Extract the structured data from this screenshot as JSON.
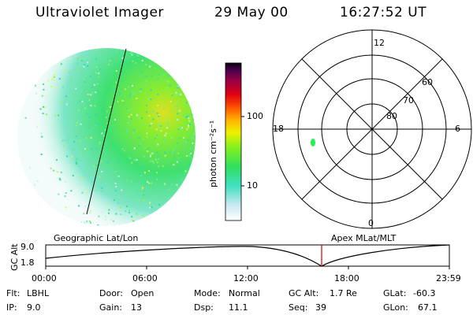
{
  "header": {
    "instrument": "Ultraviolet Imager",
    "date": "29 May 00",
    "time": "16:27:52 UT"
  },
  "colorbar": {
    "unit_label": "photon cm⁻²s⁻¹",
    "ticks": [
      "100",
      "10"
    ]
  },
  "polar_plot": {
    "mlt_labels": {
      "top": "12",
      "right": "6",
      "bottom": "0",
      "left": "18"
    },
    "lat_labels": [
      "60",
      "70",
      "80"
    ]
  },
  "timeline": {
    "left_title": "Geographic Lat/Lon",
    "right_title": "Apex MLat/MLT",
    "y_axis_label": "GC Alt",
    "y_ticks": [
      "9.0",
      "1.8"
    ],
    "x_ticks": [
      "00:00",
      "06:00",
      "12:00",
      "18:00",
      "23:59"
    ]
  },
  "status": {
    "flt": {
      "label": "Flt:",
      "value": "LBHL"
    },
    "ip": {
      "label": "IP:",
      "value": "9.0"
    },
    "door": {
      "label": "Door:",
      "value": "Open"
    },
    "gain": {
      "label": "Gain:",
      "value": "13"
    },
    "mode": {
      "label": "Mode:",
      "value": "Normal"
    },
    "dsp": {
      "label": "Dsp:",
      "value": "11.1"
    },
    "gcalt": {
      "label": "GC Alt:",
      "value": "1.7 Re"
    },
    "seq": {
      "label": "Seq:",
      "value": "39"
    },
    "glat": {
      "label": "GLat:",
      "value": "-60.3"
    },
    "glon": {
      "label": "GLon:",
      "value": "67.1"
    }
  },
  "colors": {
    "background": "#ffffff",
    "foreground": "#000000",
    "current_time_marker": "#cc0000",
    "aurora_green": "#22ee55"
  }
}
